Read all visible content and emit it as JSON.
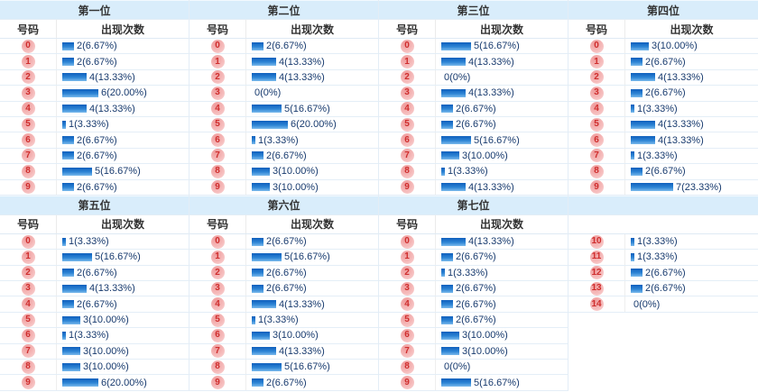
{
  "meta": {
    "number_col_header": "号码",
    "count_col_header": "出现次数",
    "value_format": "count(percent%)",
    "total_draws": 30
  },
  "colors": {
    "panel_title_bg": "#d9edfb",
    "bar_gradient_top": "#0f5fbc",
    "bar_gradient_bottom": "#7ab9ec",
    "badge_bg": "#f5baba",
    "badge_text": "#cf2e2e",
    "count_text": "#173a6e",
    "row_border": "#e4eef7",
    "header_text": "#333333"
  },
  "layout": {
    "columns": 4,
    "panel_sequence": [
      {
        "position_index": 0,
        "from": 0,
        "to": 10,
        "continuation": false
      },
      {
        "position_index": 1,
        "from": 0,
        "to": 10,
        "continuation": false
      },
      {
        "position_index": 2,
        "from": 0,
        "to": 10,
        "continuation": false
      },
      {
        "position_index": 3,
        "from": 0,
        "to": 10,
        "continuation": false
      },
      {
        "position_index": 4,
        "from": 0,
        "to": 10,
        "continuation": false
      },
      {
        "position_index": 5,
        "from": 0,
        "to": 10,
        "continuation": false
      },
      {
        "position_index": 6,
        "from": 0,
        "to": 10,
        "continuation": false
      },
      {
        "position_index": 6,
        "from": 10,
        "to": 15,
        "continuation": true
      }
    ]
  },
  "chart_data": [
    {
      "type": "bar",
      "title": "第一位",
      "xlabel": "号码",
      "ylabel": "出现次数",
      "categories": [
        "0",
        "1",
        "2",
        "3",
        "4",
        "5",
        "6",
        "7",
        "8",
        "9"
      ],
      "values": [
        2,
        2,
        4,
        6,
        4,
        1,
        2,
        2,
        5,
        2
      ],
      "labels": [
        "2(6.67%)",
        "2(6.67%)",
        "4(13.33%)",
        "6(20.00%)",
        "4(13.33%)",
        "1(3.33%)",
        "2(6.67%)",
        "2(6.67%)",
        "5(16.67%)",
        "2(6.67%)"
      ]
    },
    {
      "type": "bar",
      "title": "第二位",
      "xlabel": "号码",
      "ylabel": "出现次数",
      "categories": [
        "0",
        "1",
        "2",
        "3",
        "4",
        "5",
        "6",
        "7",
        "8",
        "9"
      ],
      "values": [
        2,
        4,
        4,
        0,
        5,
        6,
        1,
        2,
        3,
        3
      ],
      "labels": [
        "2(6.67%)",
        "4(13.33%)",
        "4(13.33%)",
        "0(0%)",
        "5(16.67%)",
        "6(20.00%)",
        "1(3.33%)",
        "2(6.67%)",
        "3(10.00%)",
        "3(10.00%)"
      ]
    },
    {
      "type": "bar",
      "title": "第三位",
      "xlabel": "号码",
      "ylabel": "出现次数",
      "categories": [
        "0",
        "1",
        "2",
        "3",
        "4",
        "5",
        "6",
        "7",
        "8",
        "9"
      ],
      "values": [
        5,
        4,
        0,
        4,
        2,
        2,
        5,
        3,
        1,
        4
      ],
      "labels": [
        "5(16.67%)",
        "4(13.33%)",
        "0(0%)",
        "4(13.33%)",
        "2(6.67%)",
        "2(6.67%)",
        "5(16.67%)",
        "3(10.00%)",
        "1(3.33%)",
        "4(13.33%)"
      ]
    },
    {
      "type": "bar",
      "title": "第四位",
      "xlabel": "号码",
      "ylabel": "出现次数",
      "categories": [
        "0",
        "1",
        "2",
        "3",
        "4",
        "5",
        "6",
        "7",
        "8",
        "9"
      ],
      "values": [
        3,
        2,
        4,
        2,
        1,
        4,
        4,
        1,
        2,
        7
      ],
      "labels": [
        "3(10.00%)",
        "2(6.67%)",
        "4(13.33%)",
        "2(6.67%)",
        "1(3.33%)",
        "4(13.33%)",
        "4(13.33%)",
        "1(3.33%)",
        "2(6.67%)",
        "7(23.33%)"
      ]
    },
    {
      "type": "bar",
      "title": "第五位",
      "xlabel": "号码",
      "ylabel": "出现次数",
      "categories": [
        "0",
        "1",
        "2",
        "3",
        "4",
        "5",
        "6",
        "7",
        "8",
        "9"
      ],
      "values": [
        1,
        5,
        2,
        4,
        2,
        3,
        1,
        3,
        3,
        6
      ],
      "labels": [
        "1(3.33%)",
        "5(16.67%)",
        "2(6.67%)",
        "4(13.33%)",
        "2(6.67%)",
        "3(10.00%)",
        "1(3.33%)",
        "3(10.00%)",
        "3(10.00%)",
        "6(20.00%)"
      ]
    },
    {
      "type": "bar",
      "title": "第六位",
      "xlabel": "号码",
      "ylabel": "出现次数",
      "categories": [
        "0",
        "1",
        "2",
        "3",
        "4",
        "5",
        "6",
        "7",
        "8",
        "9"
      ],
      "values": [
        2,
        5,
        2,
        2,
        4,
        1,
        3,
        4,
        5,
        2
      ],
      "labels": [
        "2(6.67%)",
        "5(16.67%)",
        "2(6.67%)",
        "2(6.67%)",
        "4(13.33%)",
        "1(3.33%)",
        "3(10.00%)",
        "4(13.33%)",
        "5(16.67%)",
        "2(6.67%)"
      ]
    },
    {
      "type": "bar",
      "title": "第七位",
      "xlabel": "号码",
      "ylabel": "出现次数",
      "categories": [
        "0",
        "1",
        "2",
        "3",
        "4",
        "5",
        "6",
        "7",
        "8",
        "9",
        "10",
        "11",
        "12",
        "13",
        "14"
      ],
      "values": [
        4,
        2,
        1,
        2,
        2,
        2,
        3,
        3,
        0,
        5,
        1,
        1,
        2,
        2,
        0
      ],
      "labels": [
        "4(13.33%)",
        "2(6.67%)",
        "1(3.33%)",
        "2(6.67%)",
        "2(6.67%)",
        "2(6.67%)",
        "3(10.00%)",
        "3(10.00%)",
        "0(0%)",
        "5(16.67%)",
        "1(3.33%)",
        "1(3.33%)",
        "2(6.67%)",
        "2(6.67%)",
        "0(0%)"
      ]
    }
  ]
}
